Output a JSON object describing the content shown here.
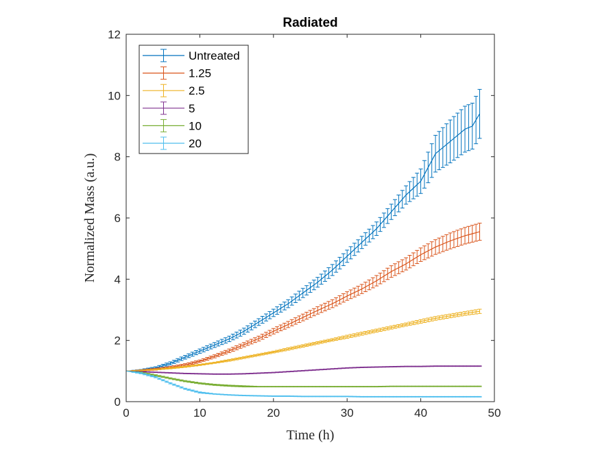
{
  "chart_data": {
    "type": "line",
    "title": "Radiated",
    "xlabel": "Time (h)",
    "ylabel": "Normalized Mass (a.u.)",
    "xlim": [
      0,
      50
    ],
    "ylim": [
      0,
      12
    ],
    "xticks": [
      "0",
      "10",
      "20",
      "30",
      "40",
      "50"
    ],
    "yticks": [
      "0",
      "2",
      "4",
      "6",
      "8",
      "10",
      "12"
    ],
    "grid": false,
    "legend_position": "top-left",
    "error_bars": true,
    "series": [
      {
        "name": "Untreated",
        "color": "#0072BD",
        "x": [
          0,
          2,
          4,
          6,
          8,
          10,
          12,
          14,
          16,
          18,
          20,
          22,
          24,
          26,
          28,
          30,
          32,
          34,
          36,
          38,
          40,
          42,
          44,
          46,
          47,
          48
        ],
        "y": [
          1.0,
          1.03,
          1.1,
          1.25,
          1.45,
          1.65,
          1.85,
          2.05,
          2.3,
          2.6,
          2.9,
          3.2,
          3.55,
          3.9,
          4.3,
          4.75,
          5.2,
          5.65,
          6.2,
          6.75,
          7.2,
          8.1,
          8.5,
          8.9,
          9.0,
          9.4
        ],
        "err": [
          0.0,
          0.02,
          0.04,
          0.05,
          0.06,
          0.07,
          0.08,
          0.09,
          0.1,
          0.11,
          0.12,
          0.13,
          0.15,
          0.16,
          0.18,
          0.2,
          0.2,
          0.22,
          0.25,
          0.3,
          0.4,
          0.6,
          0.7,
          0.75,
          0.75,
          0.8
        ]
      },
      {
        "name": "1.25",
        "color": "#D95319",
        "x": [
          0,
          2,
          4,
          6,
          8,
          10,
          12,
          14,
          16,
          18,
          20,
          22,
          24,
          26,
          28,
          30,
          32,
          34,
          36,
          38,
          40,
          42,
          44,
          46,
          48
        ],
        "y": [
          1.0,
          1.02,
          1.06,
          1.12,
          1.2,
          1.32,
          1.48,
          1.66,
          1.86,
          2.06,
          2.3,
          2.52,
          2.75,
          2.98,
          3.2,
          3.45,
          3.68,
          3.95,
          4.25,
          4.5,
          4.8,
          5.05,
          5.25,
          5.42,
          5.55
        ],
        "err": [
          0.0,
          0.02,
          0.03,
          0.03,
          0.04,
          0.04,
          0.05,
          0.06,
          0.07,
          0.08,
          0.09,
          0.1,
          0.11,
          0.12,
          0.13,
          0.14,
          0.15,
          0.17,
          0.19,
          0.2,
          0.22,
          0.24,
          0.26,
          0.27,
          0.28
        ]
      },
      {
        "name": "2.5",
        "color": "#EDB120",
        "x": [
          0,
          2,
          4,
          6,
          8,
          10,
          12,
          14,
          16,
          18,
          20,
          22,
          24,
          26,
          28,
          30,
          32,
          34,
          36,
          38,
          40,
          42,
          44,
          46,
          48
        ],
        "y": [
          1.0,
          1.02,
          1.05,
          1.09,
          1.14,
          1.2,
          1.27,
          1.35,
          1.44,
          1.53,
          1.62,
          1.72,
          1.82,
          1.92,
          2.02,
          2.12,
          2.22,
          2.32,
          2.42,
          2.52,
          2.62,
          2.72,
          2.8,
          2.88,
          2.95
        ],
        "err": [
          0.0,
          0.01,
          0.01,
          0.02,
          0.02,
          0.02,
          0.02,
          0.03,
          0.03,
          0.03,
          0.03,
          0.04,
          0.04,
          0.04,
          0.04,
          0.05,
          0.05,
          0.05,
          0.05,
          0.05,
          0.06,
          0.06,
          0.06,
          0.06,
          0.07
        ]
      },
      {
        "name": "5",
        "color": "#7E2F8E",
        "x": [
          0,
          2,
          4,
          6,
          8,
          10,
          12,
          14,
          16,
          18,
          20,
          22,
          24,
          26,
          28,
          30,
          32,
          34,
          36,
          38,
          40,
          42,
          44,
          46,
          48
        ],
        "y": [
          1.0,
          0.98,
          0.96,
          0.94,
          0.92,
          0.91,
          0.9,
          0.9,
          0.91,
          0.93,
          0.95,
          0.98,
          1.01,
          1.04,
          1.07,
          1.1,
          1.12,
          1.13,
          1.14,
          1.15,
          1.15,
          1.16,
          1.16,
          1.16,
          1.16
        ],
        "err": [
          0.0,
          0.01,
          0.01,
          0.01,
          0.01,
          0.01,
          0.01,
          0.01,
          0.01,
          0.01,
          0.01,
          0.01,
          0.01,
          0.01,
          0.01,
          0.01,
          0.01,
          0.01,
          0.01,
          0.01,
          0.01,
          0.01,
          0.01,
          0.01,
          0.01
        ]
      },
      {
        "name": "10",
        "color": "#77AC30",
        "x": [
          0,
          2,
          4,
          6,
          8,
          10,
          12,
          14,
          16,
          18,
          20,
          22,
          24,
          26,
          28,
          30,
          32,
          34,
          36,
          38,
          40,
          42,
          44,
          46,
          48
        ],
        "y": [
          1.0,
          0.95,
          0.86,
          0.76,
          0.67,
          0.6,
          0.55,
          0.52,
          0.5,
          0.49,
          0.49,
          0.49,
          0.49,
          0.49,
          0.49,
          0.49,
          0.49,
          0.49,
          0.5,
          0.5,
          0.5,
          0.5,
          0.5,
          0.5,
          0.5
        ],
        "err": [
          0.0,
          0.02,
          0.02,
          0.02,
          0.02,
          0.02,
          0.02,
          0.02,
          0.02,
          0.01,
          0.01,
          0.01,
          0.01,
          0.01,
          0.01,
          0.01,
          0.01,
          0.01,
          0.01,
          0.01,
          0.01,
          0.01,
          0.01,
          0.01,
          0.01
        ]
      },
      {
        "name": "20",
        "color": "#4DBEEE",
        "x": [
          0,
          2,
          4,
          6,
          8,
          10,
          12,
          14,
          16,
          18,
          20,
          22,
          24,
          26,
          28,
          30,
          32,
          34,
          36,
          38,
          40,
          42,
          44,
          46,
          48
        ],
        "y": [
          1.0,
          0.93,
          0.8,
          0.6,
          0.42,
          0.3,
          0.25,
          0.22,
          0.2,
          0.19,
          0.18,
          0.18,
          0.17,
          0.17,
          0.17,
          0.17,
          0.16,
          0.16,
          0.16,
          0.16,
          0.16,
          0.16,
          0.16,
          0.16,
          0.16
        ],
        "err": [
          0.0,
          0.02,
          0.02,
          0.02,
          0.02,
          0.02,
          0.01,
          0.01,
          0.01,
          0.01,
          0.01,
          0.01,
          0.01,
          0.01,
          0.01,
          0.01,
          0.01,
          0.01,
          0.01,
          0.01,
          0.01,
          0.01,
          0.01,
          0.01,
          0.01
        ]
      }
    ]
  }
}
